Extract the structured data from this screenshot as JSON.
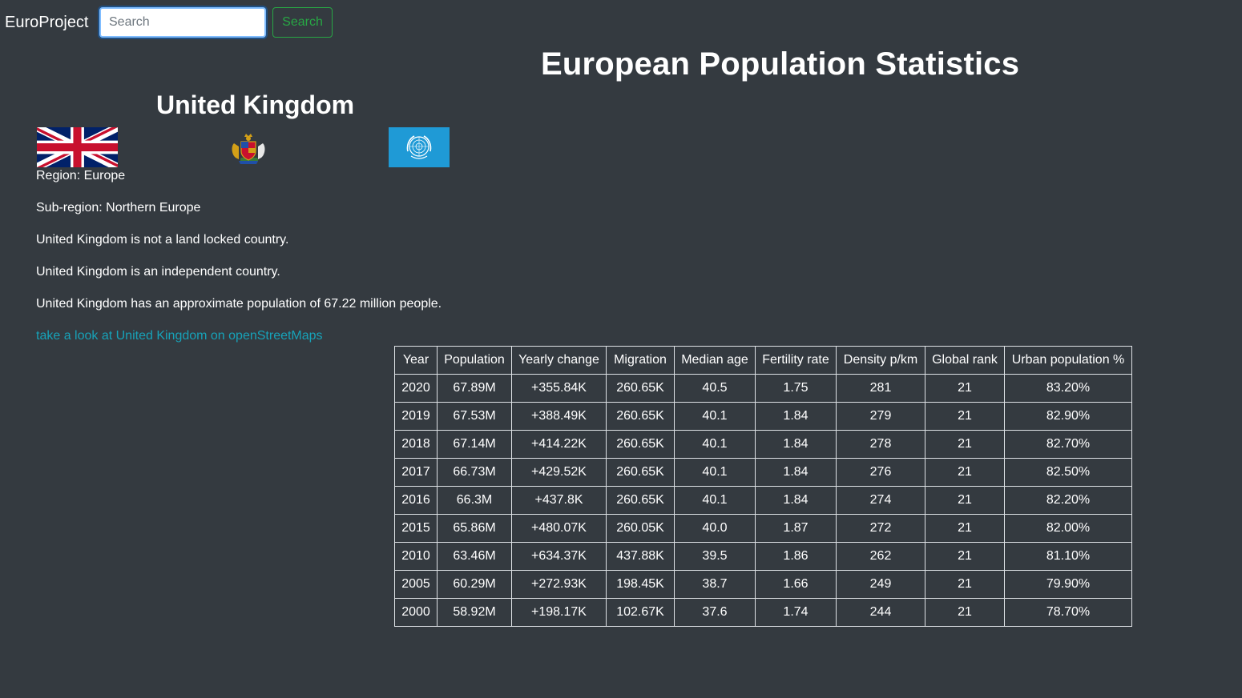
{
  "navbar": {
    "brand": "EuroProject",
    "search_placeholder": "Search",
    "search_value": "",
    "search_button": "Search"
  },
  "header": {
    "title": "European Population Statistics"
  },
  "country": {
    "name": "United Kingdom",
    "region": "Region: Europe",
    "subregion": "Sub-region: Northern Europe",
    "landlocked": "United Kingdom is not a land locked country.",
    "independent": "United Kingdom is an independent country.",
    "population": "United Kingdom has an approximate population of 67.22 million people.",
    "osm_link": "take a look at United Kingdom on openStreetMaps"
  },
  "images": {
    "flag": "uk-flag",
    "coat_of_arms": "royal-coat-of-arms",
    "un_flag": "united-nations-flag"
  },
  "colors": {
    "background": "#343a40",
    "link": "#17a2b8",
    "success": "#28a745",
    "un_blue": "#1f9ad6"
  },
  "table": {
    "headers": [
      "Year",
      "Population",
      "Yearly change",
      "Migration",
      "Median age",
      "Fertility rate",
      "Density p/km",
      "Global rank",
      "Urban population %"
    ],
    "rows": [
      [
        "2020",
        "67.89M",
        "+355.84K",
        "260.65K",
        "40.5",
        "1.75",
        "281",
        "21",
        "83.20%"
      ],
      [
        "2019",
        "67.53M",
        "+388.49K",
        "260.65K",
        "40.1",
        "1.84",
        "279",
        "21",
        "82.90%"
      ],
      [
        "2018",
        "67.14M",
        "+414.22K",
        "260.65K",
        "40.1",
        "1.84",
        "278",
        "21",
        "82.70%"
      ],
      [
        "2017",
        "66.73M",
        "+429.52K",
        "260.65K",
        "40.1",
        "1.84",
        "276",
        "21",
        "82.50%"
      ],
      [
        "2016",
        "66.3M",
        "+437.8K",
        "260.65K",
        "40.1",
        "1.84",
        "274",
        "21",
        "82.20%"
      ],
      [
        "2015",
        "65.86M",
        "+480.07K",
        "260.05K",
        "40.0",
        "1.87",
        "272",
        "21",
        "82.00%"
      ],
      [
        "2010",
        "63.46M",
        "+634.37K",
        "437.88K",
        "39.5",
        "1.86",
        "262",
        "21",
        "81.10%"
      ],
      [
        "2005",
        "60.29M",
        "+272.93K",
        "198.45K",
        "38.7",
        "1.66",
        "249",
        "21",
        "79.90%"
      ],
      [
        "2000",
        "58.92M",
        "+198.17K",
        "102.67K",
        "37.6",
        "1.74",
        "244",
        "21",
        "78.70%"
      ]
    ]
  }
}
